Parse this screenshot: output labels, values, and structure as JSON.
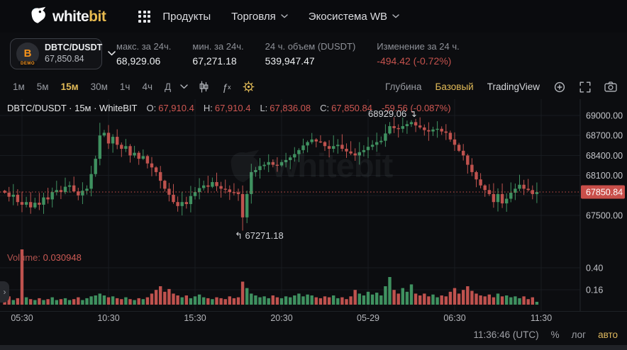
{
  "topbar": {
    "logo": {
      "part1": "white",
      "part2": "bit"
    },
    "menu": [
      {
        "label": "Продукты",
        "caret": false
      },
      {
        "label": "Торговля",
        "caret": true
      },
      {
        "label": "Экосистема WB",
        "caret": true
      }
    ]
  },
  "statsbar": {
    "pair": {
      "symbol": "DBTC/DUSDT",
      "price": "67,850.84",
      "icon_char": "B",
      "badge": "DEMO"
    },
    "stats": [
      {
        "label": "макс. за 24ч.",
        "value": "68,929.06"
      },
      {
        "label": "мин. за 24ч.",
        "value": "67,271.18"
      },
      {
        "label": "24 ч. объем (DUSDT)",
        "value": "539,947.47"
      },
      {
        "label": "Изменение за 24 ч.",
        "value": "-494.42  (-0.72%)"
      }
    ]
  },
  "toolbar": {
    "timeframes": [
      "1м",
      "5м",
      "15м",
      "30м",
      "1ч",
      "4ч",
      "Д"
    ],
    "active_timeframe": "15м",
    "indicators_f": "ƒ",
    "indicators_x": "x",
    "modes": [
      "Глубина",
      "Базовый",
      "TradingView"
    ],
    "active_mode": "Базовый"
  },
  "legend": {
    "title": "DBTC/DUSDT · 15м · WhiteBIT",
    "items": [
      {
        "k": "O:",
        "v": "67,910.4"
      },
      {
        "k": "H:",
        "v": "67,910.4"
      },
      {
        "k": "L:",
        "v": "67,836.08"
      },
      {
        "k": "C:",
        "v": "67,850.84"
      }
    ],
    "change": "-59.56 (-0.087%)"
  },
  "watermark": "whitebit",
  "annotations": {
    "high": {
      "text": "68929.06",
      "arrow": "↴"
    },
    "low": {
      "text": "67271.18",
      "arrow": "↰"
    }
  },
  "volume_label": {
    "prefix": "Volume:",
    "value": "0.030948"
  },
  "side_tab_char": "›",
  "bottom": {
    "clock": "11:36:46 (UTC)",
    "percent": "%",
    "log": "лог",
    "auto": "авто"
  },
  "chart_data": {
    "type": "candlestick+volume",
    "pair": "DBTC/DUSDT",
    "interval": "15м",
    "exchange": "WhiteBIT",
    "ohlc_current": {
      "open": 67910.4,
      "high": 67910.4,
      "low": 67836.08,
      "close": 67850.84,
      "change": -59.56,
      "change_pct": -0.087
    },
    "day_high": 68929.06,
    "day_low": 67271.18,
    "last_price": 67850.84,
    "last_price_label": "67850.84",
    "price_gridlines": [
      69000,
      68700,
      68400,
      68100,
      67800,
      67500
    ],
    "price_labels": [
      {
        "p": 69000,
        "t": "69000.00"
      },
      {
        "p": 68700,
        "t": "68700.00"
      },
      {
        "p": 68400,
        "t": "68400.00"
      },
      {
        "p": 68100,
        "t": "68100.00"
      },
      {
        "p": 67500,
        "t": "67500.00"
      }
    ],
    "volume_axis": [
      {
        "v": 0.4,
        "t": "0.40"
      },
      {
        "v": 0.16,
        "t": "0.16"
      }
    ],
    "time_ticks": [
      {
        "i": 4,
        "label": "05:30"
      },
      {
        "i": 24,
        "label": "10:30"
      },
      {
        "i": 44,
        "label": "15:30"
      },
      {
        "i": 64,
        "label": "20:30"
      },
      {
        "i": 84,
        "label": "05-29"
      },
      {
        "i": 104,
        "label": "06:30"
      },
      {
        "i": 124,
        "label": "11:30"
      }
    ],
    "first_open": 67870,
    "extremes": {
      "low_index": 55,
      "low": 67271.18,
      "high_index": 94,
      "high": 68929.06,
      "first_peak_index": 22,
      "first_peak_high": 68890
    },
    "closes": [
      67840,
      67780,
      67810,
      67700,
      67660,
      67700,
      67620,
      67690,
      67660,
      67770,
      67740,
      67850,
      67880,
      67850,
      67930,
      67950,
      67860,
      67800,
      67870,
      67900,
      68120,
      68350,
      68700,
      68740,
      68580,
      68680,
      68560,
      68500,
      68540,
      68400,
      68440,
      68350,
      68390,
      68280,
      68220,
      68150,
      68020,
      67900,
      67810,
      67700,
      67640,
      67700,
      67670,
      67790,
      67850,
      67910,
      67950,
      67930,
      68000,
      67940,
      67900,
      67890,
      67850,
      67845,
      67820,
      67470,
      67820,
      68150,
      68180,
      68240,
      68260,
      68300,
      68260,
      68250,
      68300,
      68330,
      68370,
      68420,
      68480,
      68550,
      68600,
      68640,
      68610,
      68600,
      68540,
      68500,
      68540,
      68560,
      68500,
      68460,
      68430,
      68400,
      68450,
      68480,
      68530,
      68560,
      68600,
      68620,
      68730,
      68840,
      68810,
      68800,
      68840,
      68870,
      68900,
      68850,
      68820,
      68780,
      68760,
      68790,
      68800,
      68760,
      68740,
      68640,
      68560,
      68470,
      68400,
      68260,
      68150,
      68040,
      67950,
      67880,
      67820,
      67700,
      67820,
      67680,
      67750,
      67840,
      67900,
      67960,
      67900,
      67880,
      67820,
      67850.84
    ],
    "volumes": [
      0.06,
      0.09,
      0.05,
      0.07,
      0.64,
      0.08,
      0.06,
      0.05,
      0.07,
      0.05,
      0.06,
      0.08,
      0.05,
      0.06,
      0.07,
      0.05,
      0.06,
      0.08,
      0.05,
      0.07,
      0.09,
      0.1,
      0.12,
      0.1,
      0.08,
      0.09,
      0.07,
      0.06,
      0.08,
      0.06,
      0.05,
      0.07,
      0.06,
      0.08,
      0.12,
      0.16,
      0.2,
      0.14,
      0.17,
      0.12,
      0.1,
      0.08,
      0.1,
      0.07,
      0.09,
      0.11,
      0.08,
      0.07,
      0.06,
      0.08,
      0.07,
      0.06,
      0.09,
      0.07,
      0.08,
      0.25,
      0.18,
      0.12,
      0.1,
      0.08,
      0.09,
      0.07,
      0.1,
      0.08,
      0.07,
      0.09,
      0.08,
      0.1,
      0.12,
      0.09,
      0.11,
      0.1,
      0.08,
      0.07,
      0.09,
      0.08,
      0.1,
      0.07,
      0.08,
      0.06,
      0.09,
      0.16,
      0.12,
      0.1,
      0.14,
      0.11,
      0.13,
      0.1,
      0.2,
      0.3,
      0.16,
      0.12,
      0.18,
      0.14,
      0.22,
      0.12,
      0.1,
      0.12,
      0.09,
      0.11,
      0.08,
      0.1,
      0.09,
      0.14,
      0.18,
      0.12,
      0.16,
      0.2,
      0.15,
      0.12,
      0.1,
      0.09,
      0.11,
      0.08,
      0.12,
      0.09,
      0.1,
      0.08,
      0.09,
      0.07,
      0.09,
      0.06,
      0.08,
      0.030948
    ],
    "colors": {
      "up": "#3f9160",
      "down": "#bf524e",
      "grid": "#181b20",
      "axis": "#23262c",
      "accent": "#c94f4a",
      "axis_text": "#c3c5ca"
    }
  }
}
